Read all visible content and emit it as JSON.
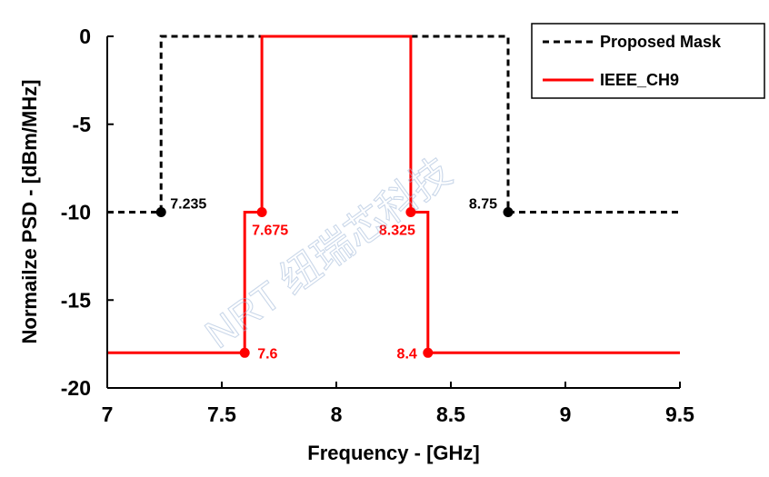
{
  "chart_data": {
    "type": "line",
    "xlabel": "Frequency - [GHz]",
    "ylabel": "Normailze PSD - [dBm/MHz]",
    "xlim": [
      7,
      9.5
    ],
    "ylim": [
      -20,
      0
    ],
    "x_ticks": [
      "7",
      "7.5",
      "8",
      "8.5",
      "9",
      "9.5"
    ],
    "y_ticks": [
      "0",
      "-5",
      "-10",
      "-15",
      "-20"
    ],
    "grid": false,
    "legend_position": "top-right",
    "series": [
      {
        "name": "Proposed Mask",
        "style": "dashed",
        "color": "#000000",
        "x": [
          7,
          7.235,
          7.235,
          8.75,
          8.75,
          9.5
        ],
        "y": [
          -10,
          -10,
          0,
          0,
          -10,
          -10
        ],
        "markers": [
          {
            "x": 7.235,
            "y": -10,
            "label": "7.235"
          },
          {
            "x": 8.75,
            "y": -10,
            "label": "8.75"
          }
        ]
      },
      {
        "name": "IEEE_CH9",
        "style": "solid",
        "color": "#ff0000",
        "x": [
          7,
          7.6,
          7.6,
          7.675,
          7.675,
          8.325,
          8.325,
          8.4,
          8.4,
          9.5
        ],
        "y": [
          -18,
          -18,
          -10,
          -10,
          0,
          0,
          -10,
          -10,
          -18,
          -18
        ],
        "markers": [
          {
            "x": 7.675,
            "y": -10,
            "label": "7.675"
          },
          {
            "x": 8.325,
            "y": -10,
            "label": "8.325"
          },
          {
            "x": 7.6,
            "y": -18,
            "label": "7.6"
          },
          {
            "x": 8.4,
            "y": -18,
            "label": "8.4"
          }
        ]
      }
    ]
  },
  "watermark": "NRT 纽瑞芯科技"
}
